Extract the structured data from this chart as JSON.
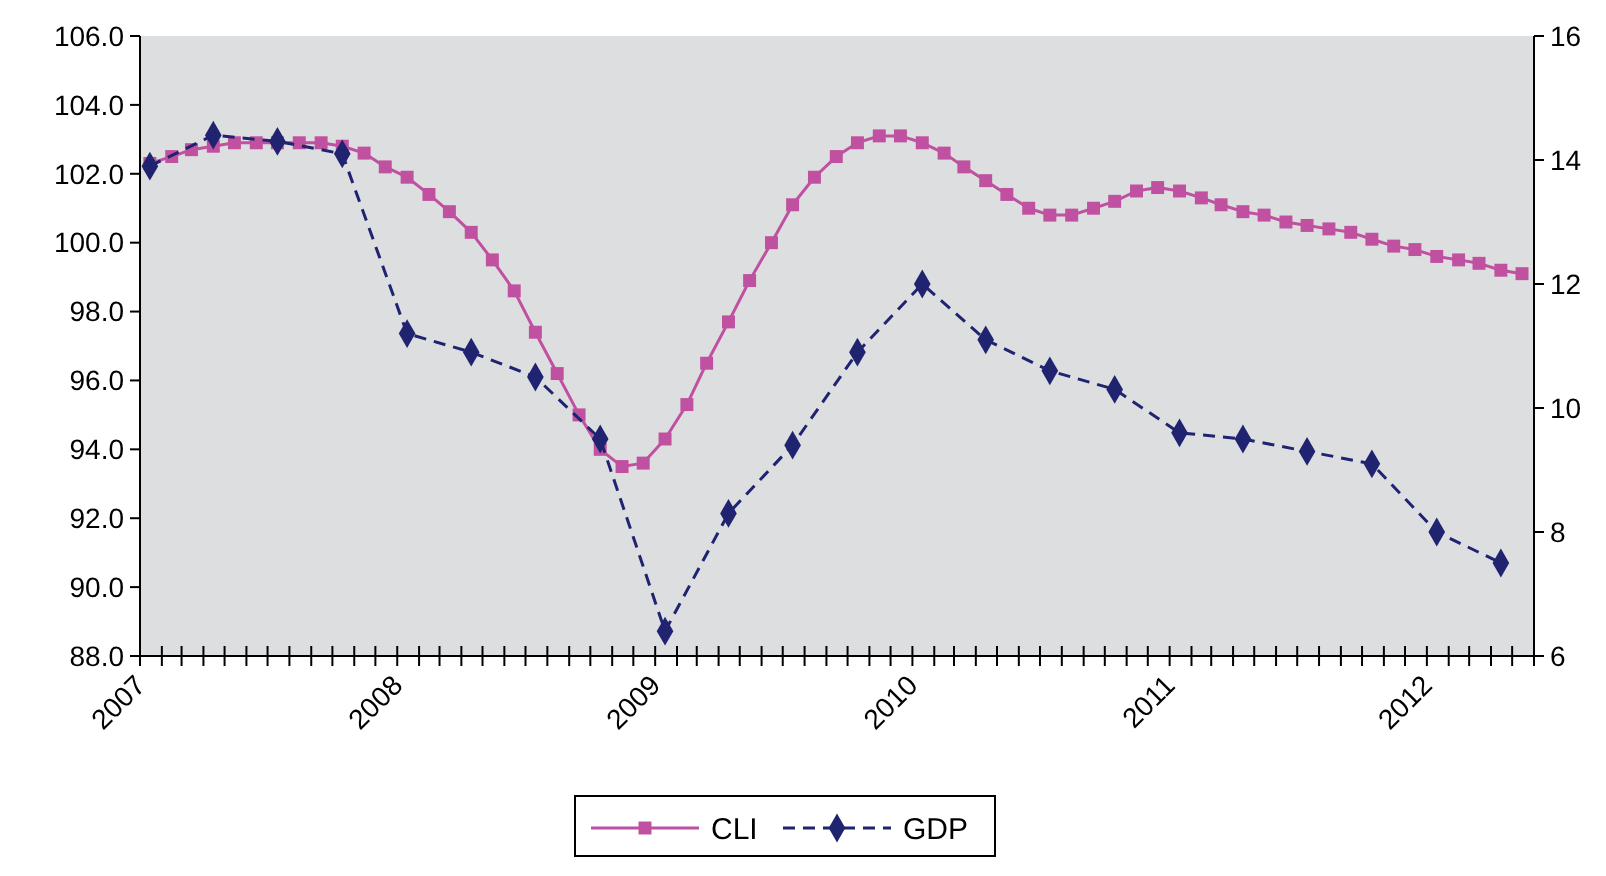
{
  "chart_data": {
    "type": "line",
    "x": [
      "2007-01-15",
      "2007-02-15",
      "2007-03-15",
      "2007-04-15",
      "2007-05-15",
      "2007-06-15",
      "2007-07-15",
      "2007-08-15",
      "2007-09-15",
      "2007-10-15",
      "2007-11-15",
      "2007-12-15",
      "2008-01-15",
      "2008-02-15",
      "2008-03-15",
      "2008-04-15",
      "2008-05-15",
      "2008-06-15",
      "2008-07-15",
      "2008-08-15",
      "2008-09-15",
      "2008-10-15",
      "2008-11-15",
      "2008-12-15",
      "2009-01-15",
      "2009-02-15",
      "2009-03-15",
      "2009-04-15",
      "2009-05-15",
      "2009-06-15",
      "2009-07-15",
      "2009-08-15",
      "2009-09-15",
      "2009-10-15",
      "2009-11-15",
      "2009-12-15",
      "2010-01-15",
      "2010-02-15",
      "2010-03-15",
      "2010-04-15",
      "2010-05-15",
      "2010-06-15",
      "2010-07-15",
      "2010-08-15",
      "2010-09-15",
      "2010-10-15",
      "2010-11-15",
      "2010-12-15",
      "2011-01-15",
      "2011-02-15",
      "2011-03-15",
      "2011-04-15",
      "2011-05-15",
      "2011-06-15",
      "2011-07-15",
      "2011-08-15",
      "2011-09-15",
      "2011-10-15",
      "2011-11-15",
      "2011-12-15",
      "2012-01-15",
      "2012-02-15",
      "2012-03-15",
      "2012-04-15",
      "2012-05-15"
    ],
    "series": [
      {
        "name": "CLI",
        "color": "#c050a0",
        "marker": "square",
        "line_style": "solid",
        "values": [
          102.3,
          102.5,
          102.7,
          102.8,
          102.9,
          102.9,
          102.9,
          102.9,
          102.9,
          102.8,
          102.6,
          102.2,
          101.9,
          101.4,
          100.9,
          100.3,
          99.5,
          98.6,
          97.4,
          96.2,
          95.0,
          94.0,
          93.5,
          93.6,
          94.3,
          95.3,
          96.5,
          97.7,
          98.9,
          100.0,
          101.1,
          101.9,
          102.5,
          102.9,
          103.1,
          103.1,
          102.9,
          102.6,
          102.2,
          101.8,
          101.4,
          101.0,
          100.8,
          100.8,
          101.0,
          101.2,
          101.5,
          101.6,
          101.5,
          101.3,
          101.1,
          100.9,
          100.8,
          100.6,
          100.5,
          100.4,
          100.3,
          100.1,
          99.9,
          99.8,
          99.6,
          99.5,
          99.4,
          99.2,
          99.1
        ]
      },
      {
        "name": "GDP",
        "color": "#1f2370",
        "marker": "diamond",
        "line_style": "dashed",
        "axis": "y2",
        "x": [
          "2007-01-15",
          "2007-04-15",
          "2007-07-15",
          "2007-10-15",
          "2008-01-15",
          "2008-04-15",
          "2008-07-15",
          "2008-10-15",
          "2009-01-15",
          "2009-04-15",
          "2009-07-15",
          "2009-10-15",
          "2010-01-15",
          "2010-04-15",
          "2010-07-15",
          "2010-10-15",
          "2011-01-15",
          "2011-04-15",
          "2011-07-15",
          "2011-10-15",
          "2012-01-15",
          "2012-04-15"
        ],
        "values": [
          13.9,
          14.4,
          14.3,
          14.1,
          11.2,
          10.9,
          10.5,
          9.5,
          6.4,
          8.3,
          9.4,
          10.9,
          12.0,
          11.1,
          10.6,
          10.3,
          9.6,
          9.5,
          9.3,
          9.1,
          8.0,
          7.5
        ]
      }
    ],
    "xlim": [
      "2007-01-01",
      "2012-06-01"
    ],
    "xticks": [
      "2007",
      {
        "value": "2007-02",
        "label": null
      },
      {
        "value": "2007-03",
        "label": null
      },
      {
        "value": "2007-04",
        "label": null
      },
      {
        "value": "2007-05",
        "label": null
      },
      {
        "value": "2007-06",
        "label": null
      },
      {
        "value": "2007-07",
        "label": null
      },
      {
        "value": "2007-08",
        "label": null
      },
      {
        "value": "2007-09",
        "label": null
      },
      {
        "value": "2007-10",
        "label": null
      },
      {
        "value": "2007-11",
        "label": null
      },
      {
        "value": "2007-12",
        "label": null
      },
      "2008",
      {
        "value": "2008-02",
        "label": null
      },
      {
        "value": "2008-03",
        "label": null
      },
      {
        "value": "2008-04",
        "label": null
      },
      {
        "value": "2008-05",
        "label": null
      },
      {
        "value": "2008-06",
        "label": null
      },
      {
        "value": "2008-07",
        "label": null
      },
      {
        "value": "2008-08",
        "label": null
      },
      {
        "value": "2008-09",
        "label": null
      },
      {
        "value": "2008-10",
        "label": null
      },
      {
        "value": "2008-11",
        "label": null
      },
      {
        "value": "2008-12",
        "label": null
      },
      "2009",
      {
        "value": "2009-02",
        "label": null
      },
      {
        "value": "2009-03",
        "label": null
      },
      {
        "value": "2009-04",
        "label": null
      },
      {
        "value": "2009-05",
        "label": null
      },
      {
        "value": "2009-06",
        "label": null
      },
      {
        "value": "2009-07",
        "label": null
      },
      {
        "value": "2009-08",
        "label": null
      },
      {
        "value": "2009-09",
        "label": null
      },
      {
        "value": "2009-10",
        "label": null
      },
      {
        "value": "2009-11",
        "label": null
      },
      {
        "value": "2009-12",
        "label": null
      },
      "2010",
      {
        "value": "2010-02",
        "label": null
      },
      {
        "value": "2010-03",
        "label": null
      },
      {
        "value": "2010-04",
        "label": null
      },
      {
        "value": "2010-05",
        "label": null
      },
      {
        "value": "2010-06",
        "label": null
      },
      {
        "value": "2010-07",
        "label": null
      },
      {
        "value": "2010-08",
        "label": null
      },
      {
        "value": "2010-09",
        "label": null
      },
      {
        "value": "2010-10",
        "label": null
      },
      {
        "value": "2010-11",
        "label": null
      },
      {
        "value": "2010-12",
        "label": null
      },
      "2011",
      {
        "value": "2011-02",
        "label": null
      },
      {
        "value": "2011-03",
        "label": null
      },
      {
        "value": "2011-04",
        "label": null
      },
      {
        "value": "2011-05",
        "label": null
      },
      {
        "value": "2011-06",
        "label": null
      },
      {
        "value": "2011-07",
        "label": null
      },
      {
        "value": "2011-08",
        "label": null
      },
      {
        "value": "2011-09",
        "label": null
      },
      {
        "value": "2011-10",
        "label": null
      },
      {
        "value": "2011-11",
        "label": null
      },
      {
        "value": "2011-12",
        "label": null
      },
      "2012",
      {
        "value": "2012-02",
        "label": null
      },
      {
        "value": "2012-03",
        "label": null
      },
      {
        "value": "2012-04",
        "label": null
      },
      {
        "value": "2012-05",
        "label": null
      },
      {
        "value": "2012-06",
        "label": null
      }
    ],
    "ylim": [
      88,
      106
    ],
    "yticks": [
      {
        "value": 88,
        "label": "88.0"
      },
      {
        "value": 90,
        "label": "90.0"
      },
      {
        "value": 92,
        "label": "92.0"
      },
      {
        "value": 94,
        "label": "94.0"
      },
      {
        "value": 96,
        "label": "96.0"
      },
      {
        "value": 98,
        "label": "98.0"
      },
      {
        "value": 100,
        "label": "100.0"
      },
      {
        "value": 102,
        "label": "102.0"
      },
      {
        "value": 104,
        "label": "104.0"
      },
      {
        "value": 106,
        "label": "106.0"
      }
    ],
    "y2lim": [
      6,
      16
    ],
    "y2ticks": [
      6,
      8,
      10,
      12,
      14,
      16
    ],
    "grid": false,
    "legend": "bottom"
  }
}
